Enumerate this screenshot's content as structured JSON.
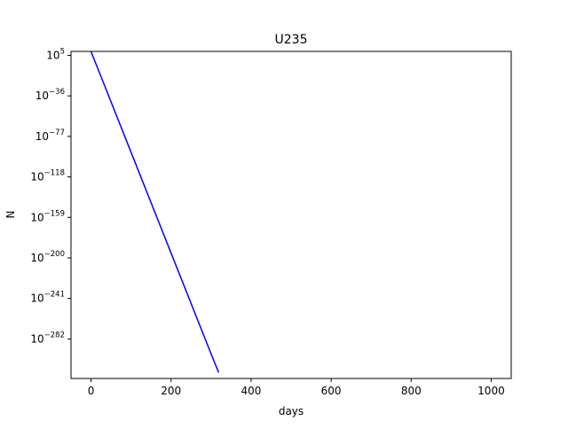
{
  "chart_data": {
    "type": "line",
    "title": "U235",
    "xlabel": "days",
    "ylabel": "N",
    "yscale": "log",
    "grid": false,
    "xlim": [
      -50,
      1050
    ],
    "ylim_exponent": [
      -322,
      9
    ],
    "x_ticks": [
      0,
      200,
      400,
      600,
      800,
      1000
    ],
    "y_tick_exponents": [
      5,
      -36,
      -77,
      -118,
      -159,
      -200,
      -241,
      -282
    ],
    "y_tick_base": "10",
    "series": [
      {
        "color": "#0000ff",
        "points": [
          {
            "x": 0,
            "log10_y": 9
          },
          {
            "x": 100,
            "log10_y": -93
          },
          {
            "x": 200,
            "log10_y": -195
          },
          {
            "x": 300,
            "log10_y": -297
          },
          {
            "x": 319,
            "log10_y": -316
          }
        ]
      }
    ]
  }
}
